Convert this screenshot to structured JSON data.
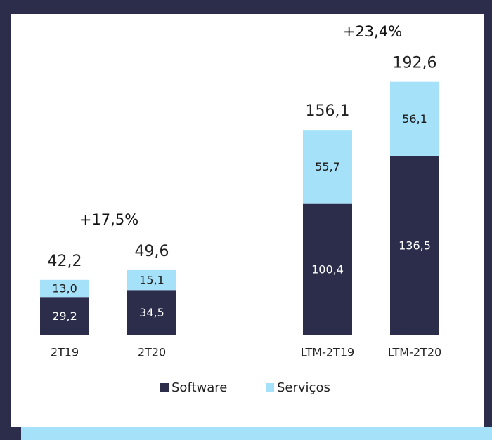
{
  "chart_data": {
    "type": "stacked_bar",
    "categories": [
      "2T19",
      "2T20",
      "LTM-2T19",
      "LTM-2T20"
    ],
    "series": [
      {
        "name": "Software",
        "color": "#2b2d4a",
        "values": [
          29.2,
          34.5,
          100.4,
          136.5
        ],
        "value_labels": [
          "29,2",
          "34,5",
          "100,4",
          "136,5"
        ]
      },
      {
        "name": "Serviços",
        "color": "#a6e1fa",
        "values": [
          13.0,
          15.1,
          55.7,
          56.1
        ],
        "value_labels": [
          "13,0",
          "15,1",
          "55,7",
          "56,1"
        ]
      }
    ],
    "totals": [
      42.2,
      49.6,
      156.1,
      192.6
    ],
    "total_labels": [
      "42,2",
      "49,6",
      "156,1",
      "192,6"
    ],
    "annotations": [
      "+17,5%",
      "+23,4%"
    ]
  }
}
